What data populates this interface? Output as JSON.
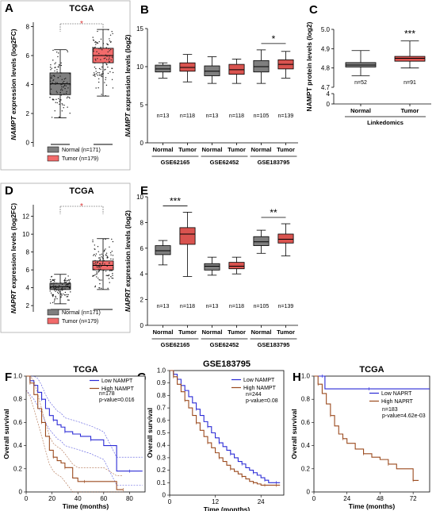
{
  "colors": {
    "normal_box": "#7f7f7f",
    "tumor_box_tcga": "#f26b6b",
    "tumor_box": "#d9534f",
    "low_line": "#2b2bd6",
    "high_line": "#9b4a1e",
    "sig_red": "#e03030"
  },
  "panel_labels": [
    "A",
    "B",
    "C",
    "D",
    "E",
    "F",
    "G",
    "H"
  ],
  "chart_data": [
    {
      "id": "A",
      "type": "box",
      "title": "TCGA",
      "ylabel": "NAMPT expression levels (log2FC)",
      "ylabel_gene": "NAMPT",
      "ylabel_rest": " expression levels (log2FC)",
      "ylim": [
        -0.3,
        8.3
      ],
      "yticks": [
        0,
        2,
        4,
        6,
        8
      ],
      "groups": [
        {
          "name": "Normal (n=171)",
          "q1": 3.3,
          "median": 4.05,
          "q3": 4.8,
          "whislo": 1.7,
          "whishi": 6.4,
          "color": "#7f7f7f"
        },
        {
          "name": "Tumor (n=179)",
          "q1": 5.5,
          "median": 6.0,
          "q3": 6.5,
          "whislo": 3.2,
          "whishi": 7.8,
          "color": "#f26b6b"
        }
      ],
      "significance": "*",
      "legend": [
        "Normal (n=171)",
        "Tumor (n=179)"
      ]
    },
    {
      "id": "B",
      "type": "box",
      "title": "",
      "ylabel": "NAMPT expression levels (log2)",
      "ylabel_gene": "NAMPT",
      "ylabel_rest": " expression levels (log2)",
      "ylim": [
        0,
        15
      ],
      "yticks": [
        0,
        5,
        10,
        15
      ],
      "categories": [
        "Normal",
        "Tumor",
        "Normal",
        "Tumor",
        "Normal",
        "Tumor"
      ],
      "n_labels": [
        "n=13",
        "n=118",
        "n=13",
        "n=118",
        "n=105",
        "n=139"
      ],
      "datasets": [
        "GSE62165",
        "GSE62452",
        "GSE183795"
      ],
      "boxes": [
        {
          "q1": 9.3,
          "median": 9.7,
          "q3": 10.2,
          "whislo": 8.5,
          "whishi": 10.5
        },
        {
          "q1": 9.4,
          "median": 9.9,
          "q3": 10.5,
          "whislo": 8.0,
          "whishi": 11.6
        },
        {
          "q1": 8.8,
          "median": 9.4,
          "q3": 10.1,
          "whislo": 7.8,
          "whishi": 11.3
        },
        {
          "q1": 9.0,
          "median": 9.6,
          "q3": 10.3,
          "whislo": 7.8,
          "whishi": 11.0
        },
        {
          "q1": 9.3,
          "median": 10.0,
          "q3": 10.8,
          "whislo": 7.8,
          "whishi": 12.2
        },
        {
          "q1": 9.7,
          "median": 10.3,
          "q3": 10.9,
          "whislo": 8.5,
          "whishi": 12.0
        }
      ],
      "significance": [
        {
          "pair": [
            4,
            5
          ],
          "label": "*"
        }
      ]
    },
    {
      "id": "C",
      "type": "box",
      "title": "",
      "ylabel": "NAMPT protein levels (log2)",
      "ylim_upper": [
        4.7,
        5.0
      ],
      "yticks_upper": [
        4.7,
        4.8,
        4.9,
        5.0
      ],
      "ylim_lower": [
        0,
        4
      ],
      "yticks_lower": [
        0,
        4
      ],
      "categories": [
        "Normal",
        "Tumor"
      ],
      "n_labels": [
        "n=52",
        "n=91"
      ],
      "xlabel": "Linkedomics",
      "boxes": [
        {
          "q1": 4.805,
          "median": 4.815,
          "q3": 4.828,
          "whislo": 4.76,
          "whishi": 4.89,
          "color": "#7f7f7f"
        },
        {
          "q1": 4.835,
          "median": 4.85,
          "q3": 4.86,
          "whislo": 4.8,
          "whishi": 4.94,
          "color": "#d9534f"
        }
      ],
      "significance": "***"
    },
    {
      "id": "D",
      "type": "box",
      "title": "TCGA",
      "ylabel": "NAPRT expression levels (log2FC)",
      "ylabel_gene": "NAPRT",
      "ylabel_rest": " expression levels (log2FC)",
      "ylim": [
        1.3,
        13.3
      ],
      "yticks": [
        2,
        4,
        6,
        8,
        10,
        12
      ],
      "groups": [
        {
          "name": "Normal (n=171)",
          "q1": 3.8,
          "median": 4.1,
          "q3": 4.5,
          "whislo": 2.2,
          "whishi": 5.5,
          "color": "#7f7f7f"
        },
        {
          "name": "Tumor (n=179)",
          "q1": 6.0,
          "median": 6.5,
          "q3": 7.0,
          "whislo": 3.8,
          "whishi": 9.5,
          "color": "#f26b6b"
        }
      ],
      "significance": "*",
      "legend": [
        "Normal (n=171)",
        "Tumor (n=179)"
      ]
    },
    {
      "id": "E",
      "type": "box",
      "title": "",
      "ylabel": "NAPRT expression levels (log2)",
      "ylabel_gene": "NAPRT",
      "ylabel_rest": " expression levels (log2)",
      "ylim": [
        0,
        10
      ],
      "yticks": [
        0,
        2,
        4,
        6,
        8,
        10
      ],
      "categories": [
        "Normal",
        "Tumor",
        "Normal",
        "Tumor",
        "Normal",
        "Tumor"
      ],
      "n_labels": [
        "n=13",
        "n=118",
        "n=13",
        "n=118",
        "n=105",
        "n=139"
      ],
      "datasets": [
        "GSE62165",
        "GSE62452",
        "GSE183795"
      ],
      "boxes": [
        {
          "q1": 5.5,
          "median": 5.8,
          "q3": 6.2,
          "whislo": 4.7,
          "whishi": 6.6
        },
        {
          "q1": 6.3,
          "median": 7.1,
          "q3": 7.6,
          "whislo": 3.8,
          "whishi": 8.8
        },
        {
          "q1": 4.3,
          "median": 4.6,
          "q3": 4.8,
          "whislo": 3.9,
          "whishi": 5.3
        },
        {
          "q1": 4.4,
          "median": 4.6,
          "q3": 4.9,
          "whislo": 4.0,
          "whishi": 5.3
        },
        {
          "q1": 6.2,
          "median": 6.5,
          "q3": 6.9,
          "whislo": 5.6,
          "whishi": 7.4
        },
        {
          "q1": 6.4,
          "median": 6.7,
          "q3": 7.1,
          "whislo": 5.4,
          "whishi": 7.9
        }
      ],
      "significance": [
        {
          "pair": [
            0,
            1
          ],
          "label": "***"
        },
        {
          "pair": [
            4,
            5
          ],
          "label": "**"
        }
      ]
    },
    {
      "id": "F",
      "type": "line",
      "title": "TCGA",
      "xlabel": "Time (months)",
      "ylabel": "Overall survival",
      "xlim": [
        0,
        92
      ],
      "ylim": [
        0,
        1.0
      ],
      "xticks": [
        0,
        20,
        40,
        60,
        80
      ],
      "yticks": [
        0,
        0.2,
        0.4,
        0.6,
        0.8,
        1.0
      ],
      "series": [
        {
          "name": "Low NAMPT",
          "color": "#2b2bd6",
          "x": [
            0,
            3,
            6,
            9,
            12,
            15,
            18,
            21,
            24,
            27,
            30,
            36,
            42,
            50,
            60,
            70,
            80,
            90
          ],
          "y": [
            1.0,
            0.96,
            0.92,
            0.86,
            0.8,
            0.72,
            0.66,
            0.62,
            0.58,
            0.56,
            0.52,
            0.5,
            0.48,
            0.45,
            0.4,
            0.18,
            0.18,
            0.18
          ]
        },
        {
          "name": "High NAMPT",
          "color": "#9b4a1e",
          "x": [
            0,
            3,
            6,
            9,
            12,
            15,
            18,
            21,
            24,
            27,
            30,
            36,
            40,
            45,
            60,
            70,
            75
          ],
          "y": [
            1.0,
            0.94,
            0.84,
            0.72,
            0.6,
            0.48,
            0.36,
            0.3,
            0.27,
            0.25,
            0.21,
            0.12,
            0.09,
            0.09,
            0.09,
            0.02,
            0.02
          ]
        }
      ],
      "annotations": [
        "n=178",
        "p-value=0.016"
      ]
    },
    {
      "id": "G",
      "type": "line",
      "title": "GSE183795",
      "xlabel": "Time (months)",
      "ylabel": "Overall survival",
      "xlim": [
        0,
        30
      ],
      "ylim": [
        0,
        1.0
      ],
      "xticks": [
        0,
        12,
        24
      ],
      "yticks": [
        0,
        0.1,
        0.2,
        0.3,
        0.4,
        0.5,
        0.6,
        0.7,
        0.8,
        0.9,
        1.0
      ],
      "series": [
        {
          "name": "Low NAMPT",
          "color": "#2b2bd6",
          "x": [
            0,
            1,
            2,
            3,
            4,
            5,
            6,
            7,
            8,
            9,
            10,
            11,
            12,
            13,
            14,
            15,
            16,
            17,
            18,
            19,
            20,
            21,
            22,
            23,
            24,
            25,
            26,
            27,
            28,
            29
          ],
          "y": [
            1.0,
            0.97,
            0.93,
            0.88,
            0.84,
            0.79,
            0.74,
            0.69,
            0.64,
            0.59,
            0.55,
            0.5,
            0.46,
            0.42,
            0.39,
            0.36,
            0.33,
            0.3,
            0.27,
            0.25,
            0.22,
            0.2,
            0.18,
            0.16,
            0.14,
            0.12,
            0.1,
            0.1,
            0.1,
            0.1
          ]
        },
        {
          "name": "High NAMPT",
          "color": "#9b4a1e",
          "x": [
            0,
            1,
            2,
            3,
            4,
            5,
            6,
            7,
            8,
            9,
            10,
            11,
            12,
            13,
            14,
            15,
            16,
            17,
            18,
            19,
            20,
            21,
            22,
            23,
            24,
            25,
            26,
            27,
            28,
            29
          ],
          "y": [
            1.0,
            0.95,
            0.89,
            0.83,
            0.76,
            0.7,
            0.64,
            0.58,
            0.52,
            0.47,
            0.42,
            0.38,
            0.34,
            0.3,
            0.27,
            0.24,
            0.21,
            0.19,
            0.17,
            0.15,
            0.13,
            0.11,
            0.1,
            0.09,
            0.08,
            0.08,
            0.08,
            0.08,
            0.08,
            0.08
          ]
        }
      ],
      "annotations": [
        "n=244",
        "p-value=0.08"
      ]
    },
    {
      "id": "H",
      "type": "line",
      "title": "TCGA",
      "xlabel": "Time (months)",
      "ylabel": "Overall survival",
      "xlim": [
        0,
        84
      ],
      "ylim": [
        0,
        1.0
      ],
      "xticks": [
        0,
        24,
        48,
        72
      ],
      "yticks": [
        0,
        0.2,
        0.4,
        0.6,
        0.8,
        1.0
      ],
      "series": [
        {
          "name": "Low NAPRT",
          "color": "#2b2bd6",
          "x": [
            0,
            6,
            8,
            20,
            40,
            60,
            84
          ],
          "y": [
            1.0,
            1.0,
            0.89,
            0.89,
            0.89,
            0.89,
            0.89
          ]
        },
        {
          "name": "High NAPRT",
          "color": "#9b4a1e",
          "x": [
            0,
            3,
            6,
            9,
            12,
            15,
            18,
            21,
            24,
            30,
            36,
            42,
            48,
            54,
            60,
            66,
            72,
            76
          ],
          "y": [
            1.0,
            0.93,
            0.85,
            0.76,
            0.66,
            0.57,
            0.5,
            0.46,
            0.42,
            0.37,
            0.33,
            0.3,
            0.28,
            0.24,
            0.2,
            0.2,
            0.1,
            0.1
          ]
        }
      ],
      "annotations": [
        "n=183",
        "p-value=4.62e-03"
      ]
    }
  ]
}
